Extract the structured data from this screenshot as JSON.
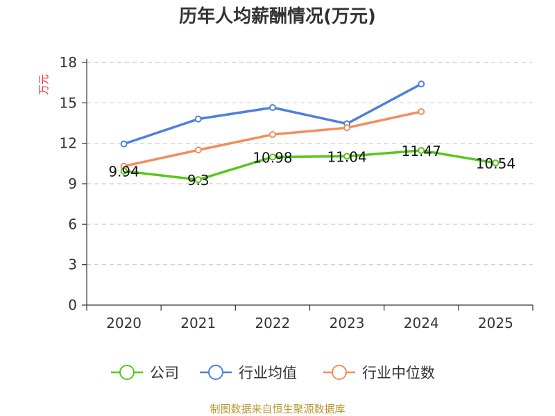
{
  "chart_data": {
    "type": "line",
    "title": "历年人均薪酬情况(万元)",
    "ylabel": "万元",
    "xlabel": "",
    "categories": [
      "2020",
      "2021",
      "2022",
      "2023",
      "2024",
      "2025"
    ],
    "ylim": [
      0,
      18
    ],
    "yticks": [
      0,
      3,
      6,
      9,
      12,
      15,
      18
    ],
    "grid": true,
    "legend_position": "bottom",
    "series": [
      {
        "name": "公司",
        "color": "#5ac51e",
        "values": [
          9.94,
          9.3,
          10.98,
          11.04,
          11.47,
          10.54
        ],
        "labels": [
          "9.94",
          "9.3",
          "10.98",
          "11.04",
          "11.47",
          "10.54"
        ]
      },
      {
        "name": "行业均值",
        "color": "#4e7fdc",
        "values": [
          11.95,
          13.8,
          14.65,
          13.45,
          16.4,
          null
        ]
      },
      {
        "name": "行业中位数",
        "color": "#f28e5c",
        "values": [
          10.3,
          11.5,
          12.65,
          13.15,
          14.35,
          null
        ]
      }
    ]
  },
  "footer": {
    "source": "制图数据来自恒生聚源数据库"
  }
}
